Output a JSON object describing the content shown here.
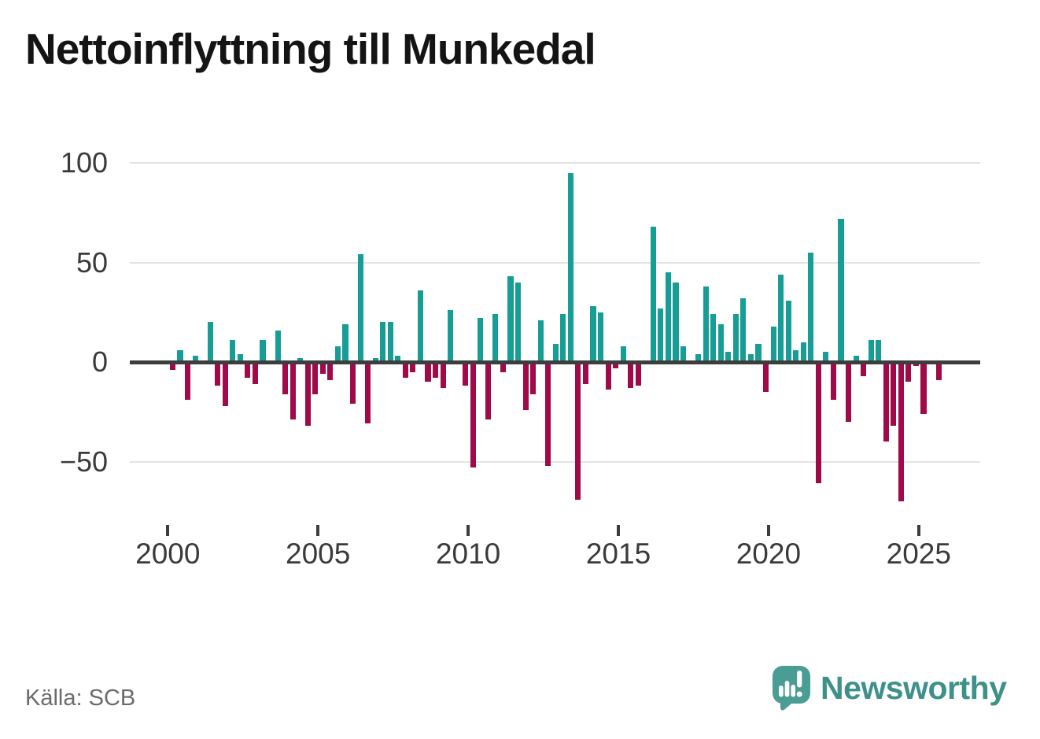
{
  "title": "Nettoinflyttning till Munkedal",
  "source": "Källa: SCB",
  "branding": {
    "name": "Newsworthy"
  },
  "colors": {
    "positive": "#169e96",
    "negative": "#a00a48",
    "axis": "#3d3d3d",
    "grid": "#e3e3e3",
    "tick_label": "#3a3a3a",
    "source_text": "#6b6b6b",
    "brand_text": "#3d918a",
    "brand_icon": "#4a9d95"
  },
  "chart_data": {
    "type": "bar",
    "title": "Nettoinflyttning till Munkedal",
    "xlabel": "",
    "ylabel": "",
    "frequency": "quarterly",
    "x_start": "2000-Q1",
    "x_end": "2025-Q3",
    "x_tick_labels": [
      "2000",
      "2005",
      "2010",
      "2015",
      "2020",
      "2025"
    ],
    "y_tick_labels": [
      "100",
      "50",
      "0",
      "−50"
    ],
    "y_tick_values": [
      100,
      50,
      0,
      -50
    ],
    "ylim": [
      -75,
      105
    ],
    "grid": true,
    "legend": false,
    "values": [
      -4,
      6,
      -19,
      3,
      0,
      20,
      -12,
      -22,
      11,
      4,
      -8,
      -11,
      11,
      0,
      16,
      -16,
      -29,
      2,
      -32,
      -16,
      -6,
      -9,
      8,
      19,
      -21,
      54,
      -31,
      2,
      20,
      20,
      3,
      -8,
      -5,
      36,
      -10,
      -8,
      -13,
      26,
      0,
      -12,
      -53,
      22,
      -29,
      24,
      -5,
      43,
      40,
      -24,
      -16,
      21,
      -52,
      9,
      24,
      95,
      -69,
      -11,
      28,
      25,
      -14,
      -3,
      8,
      -13,
      -12,
      0,
      68,
      27,
      45,
      40,
      8,
      0,
      4,
      38,
      24,
      19,
      5,
      24,
      32,
      4,
      9,
      -15,
      18,
      44,
      31,
      6,
      10,
      55,
      -61,
      5,
      -19,
      72,
      -30,
      3,
      -7,
      11,
      11,
      -40,
      -32,
      -70,
      -10,
      -2,
      -26,
      0,
      -9
    ]
  }
}
